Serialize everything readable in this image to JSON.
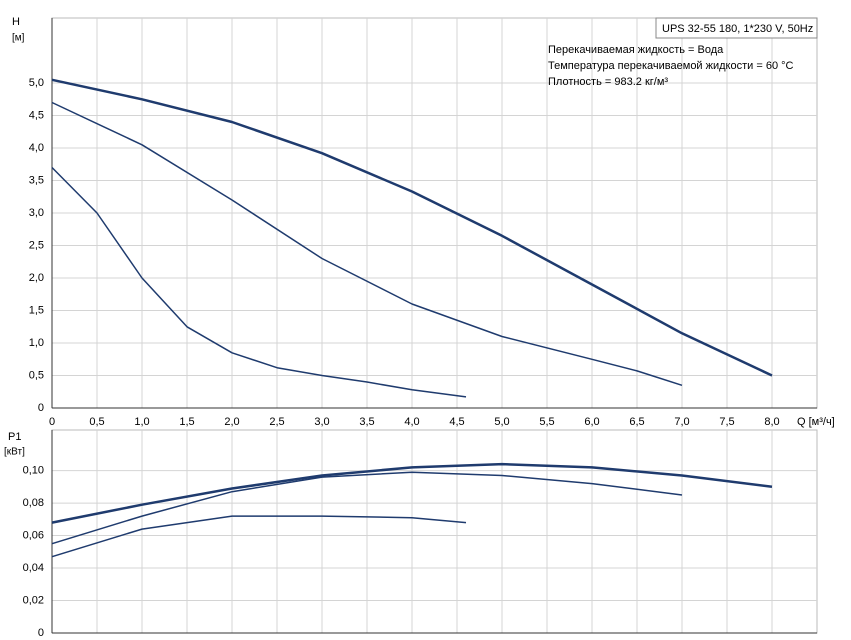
{
  "chart_data": [
    {
      "type": "line",
      "y_label": "H",
      "y_unit": "[м]",
      "x_label": "Q [м³/ч]",
      "legend_box": "UPS 32-55 180, 1*230 V, 50Hz",
      "annotations": [
        "Перекачиваемая жидкость = Вода",
        "Температура перекачиваемой жидкости = 60 °C",
        "Плотность = 983.2 кг/м³"
      ],
      "xlim": [
        0,
        8.5
      ],
      "ylim": [
        0,
        6.0
      ],
      "grid": true,
      "xticks": [
        0,
        {
          "value": 0.5,
          "label": "0,5"
        },
        {
          "value": 1.0,
          "label": "1,0"
        },
        {
          "value": 1.5,
          "label": "1,5"
        },
        {
          "value": 2.0,
          "label": "2,0"
        },
        {
          "value": 2.5,
          "label": "2,5"
        },
        {
          "value": 3.0,
          "label": "3,0"
        },
        {
          "value": 3.5,
          "label": "3,5"
        },
        {
          "value": 4.0,
          "label": "4,0"
        },
        {
          "value": 4.5,
          "label": "4,5"
        },
        {
          "value": 5.0,
          "label": "5,0"
        },
        {
          "value": 5.5,
          "label": "5,5"
        },
        {
          "value": 6.0,
          "label": "6,0"
        },
        {
          "value": 6.5,
          "label": "6,5"
        },
        {
          "value": 7.0,
          "label": "7,0"
        },
        {
          "value": 7.5,
          "label": "7,5"
        },
        {
          "value": 8.0,
          "label": "8,0"
        }
      ],
      "yticks": [
        0,
        {
          "value": 0.5,
          "label": "0,5"
        },
        {
          "value": 1.0,
          "label": "1,0"
        },
        {
          "value": 1.5,
          "label": "1,5"
        },
        {
          "value": 2.0,
          "label": "2,0"
        },
        {
          "value": 2.5,
          "label": "2,5"
        },
        {
          "value": 3.0,
          "label": "3,0"
        },
        {
          "value": 3.5,
          "label": "3,5"
        },
        {
          "value": 4.0,
          "label": "4,0"
        },
        {
          "value": 4.5,
          "label": "4,5"
        },
        {
          "value": 5.0,
          "label": "5,0"
        }
      ],
      "series": [
        {
          "color": "#1f3b6e",
          "width": 2.5,
          "x": [
            0,
            1.0,
            2.0,
            3.0,
            4.0,
            5.0,
            6.0,
            7.0,
            8.0
          ],
          "values": [
            5.05,
            4.75,
            4.4,
            3.92,
            3.33,
            2.65,
            1.9,
            1.15,
            0.5
          ]
        },
        {
          "color": "#1f3b6e",
          "width": 1.5,
          "x": [
            0,
            1.0,
            2.0,
            3.0,
            4.0,
            5.0,
            6.0,
            6.5,
            7.0
          ],
          "values": [
            4.7,
            4.05,
            3.2,
            2.3,
            1.6,
            1.1,
            0.75,
            0.57,
            0.35
          ]
        },
        {
          "color": "#1f3b6e",
          "width": 1.5,
          "x": [
            0,
            0.5,
            1.0,
            1.5,
            2.0,
            2.5,
            3.0,
            3.5,
            4.0,
            4.6
          ],
          "values": [
            3.7,
            3.0,
            2.0,
            1.25,
            0.85,
            0.62,
            0.5,
            0.4,
            0.28,
            0.17
          ]
        }
      ]
    },
    {
      "type": "line",
      "y_label": "P1",
      "y_unit": "[кВт]",
      "xlim": [
        0,
        8.5
      ],
      "ylim": [
        0,
        0.125
      ],
      "grid": true,
      "yticks": [
        0,
        {
          "value": 0.02,
          "label": "0,02"
        },
        {
          "value": 0.04,
          "label": "0,04"
        },
        {
          "value": 0.06,
          "label": "0,06"
        },
        {
          "value": 0.08,
          "label": "0,08"
        },
        {
          "value": 0.1,
          "label": "0,10"
        }
      ],
      "series": [
        {
          "color": "#1f3b6e",
          "width": 2.5,
          "x": [
            0,
            1.0,
            2.0,
            3.0,
            4.0,
            5.0,
            6.0,
            7.0,
            8.0
          ],
          "values": [
            0.068,
            0.079,
            0.089,
            0.097,
            0.102,
            0.104,
            0.102,
            0.097,
            0.09
          ]
        },
        {
          "color": "#1f3b6e",
          "width": 1.5,
          "x": [
            0,
            1.0,
            2.0,
            3.0,
            4.0,
            5.0,
            6.0,
            7.0
          ],
          "values": [
            0.055,
            0.072,
            0.087,
            0.096,
            0.099,
            0.097,
            0.092,
            0.085
          ]
        },
        {
          "color": "#1f3b6e",
          "width": 1.5,
          "x": [
            0,
            1.0,
            2.0,
            3.0,
            4.0,
            4.6
          ],
          "values": [
            0.047,
            0.064,
            0.072,
            0.072,
            0.071,
            0.068
          ]
        }
      ]
    }
  ]
}
